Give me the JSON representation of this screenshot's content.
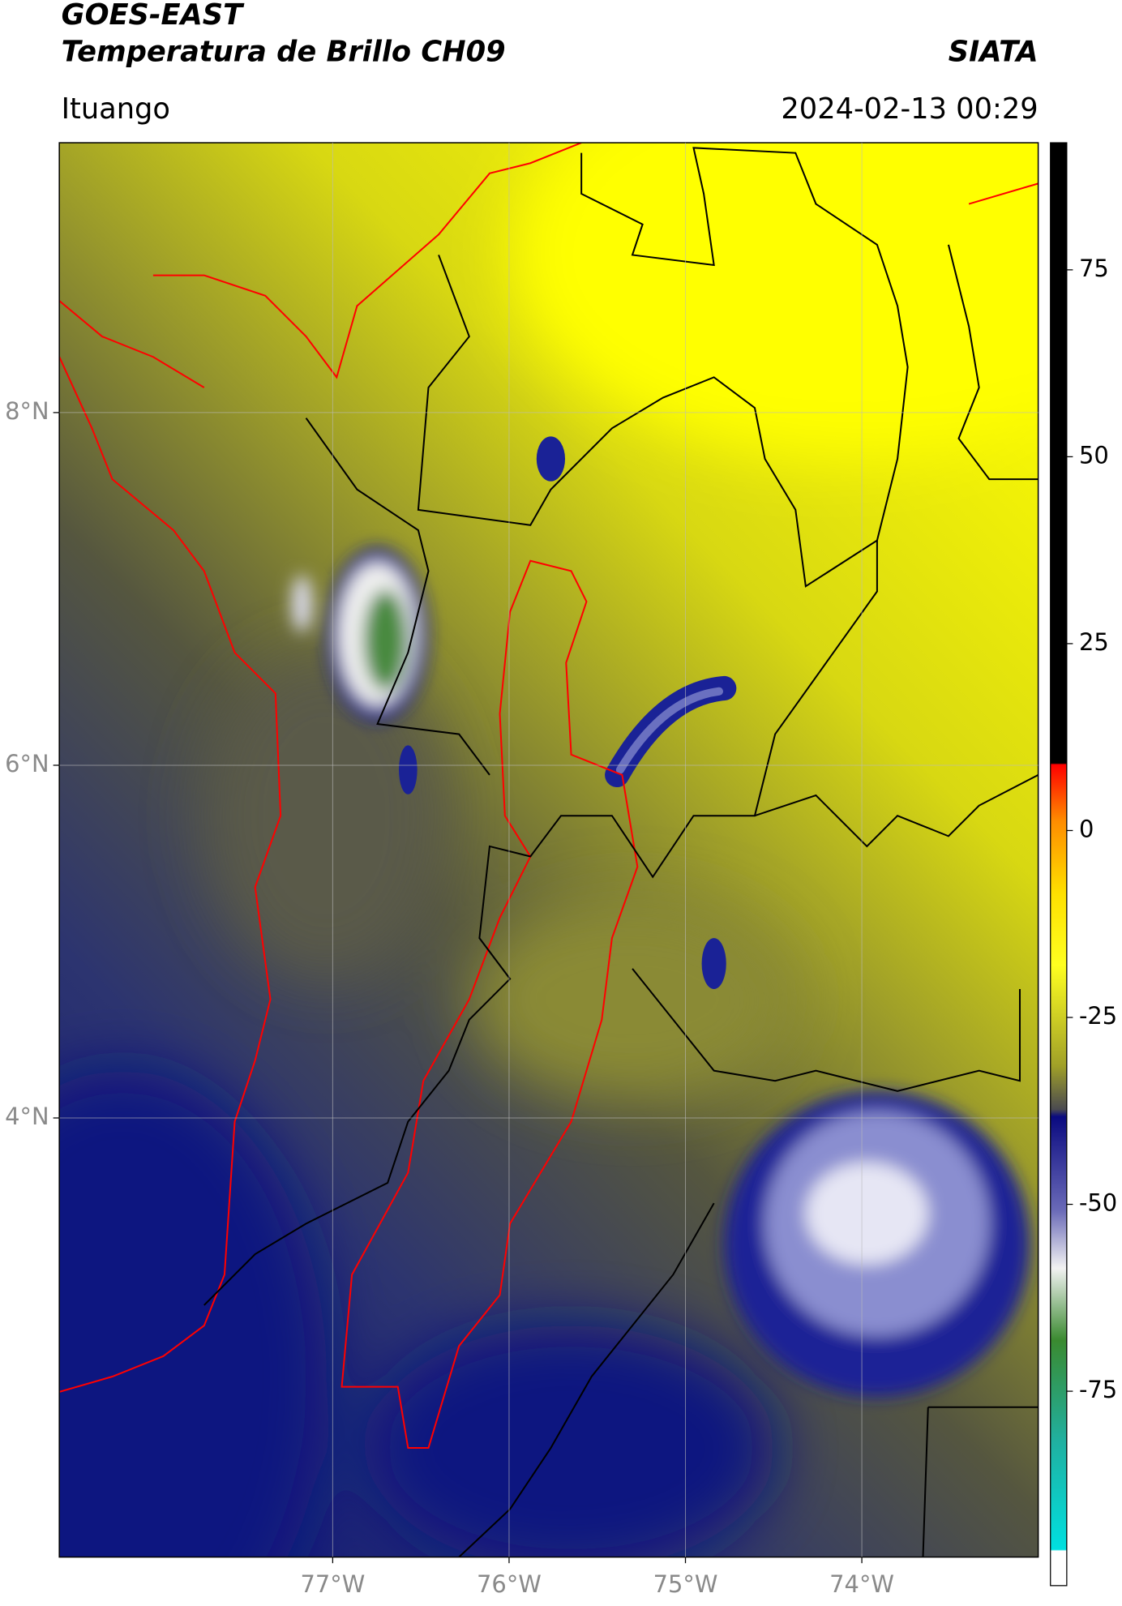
{
  "header": {
    "title": "GOES-EAST",
    "subtitle": "Temperatura de Brillo CH09",
    "agency": "SIATA",
    "location": "Ituango",
    "timestamp": "2024-02-13 00:29"
  },
  "chart_data": {
    "type": "map",
    "xlim": [
      -78.55,
      -73.0
    ],
    "ylim": [
      1.51,
      9.53
    ],
    "xticks": [
      {
        "value": -77,
        "label": "77°W"
      },
      {
        "value": -76,
        "label": "76°W"
      },
      {
        "value": -75,
        "label": "75°W"
      },
      {
        "value": -74,
        "label": "74°W"
      }
    ],
    "yticks": [
      {
        "value": 8,
        "label": "8°N"
      },
      {
        "value": 6,
        "label": "6°N"
      },
      {
        "value": 4,
        "label": "4°N"
      }
    ],
    "grid": true,
    "colorbar": {
      "lim": [
        -101,
        92
      ],
      "ticks": [
        75,
        50,
        25,
        0,
        -25,
        -50,
        -75
      ]
    }
  }
}
